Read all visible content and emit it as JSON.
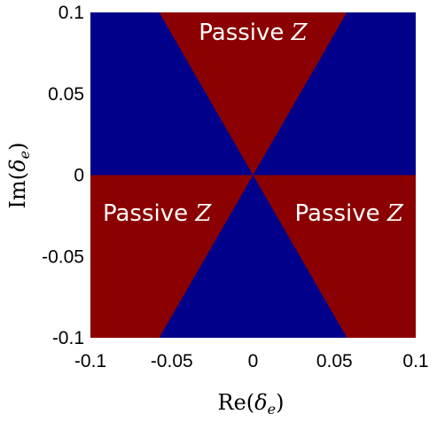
{
  "chart_data": {
    "type": "heatmap",
    "title": "",
    "x": {
      "label_prefix": "Re",
      "label_symbol": "δ",
      "label_subscript": "e",
      "range": [
        -0.1,
        0.1
      ],
      "ticks": [
        -0.1,
        -0.05,
        0,
        0.05,
        0.1
      ],
      "tick_labels": [
        "-0.1",
        "-0.05",
        "0",
        "0.05",
        "0.1"
      ]
    },
    "y": {
      "label_prefix": "Im",
      "label_symbol": "δ",
      "label_subscript": "e",
      "range": [
        -0.1,
        0.1
      ],
      "ticks": [
        0.1,
        0.05,
        0,
        -0.05,
        -0.1
      ],
      "tick_labels": [
        "0.1",
        "0.05",
        "0",
        "-0.05",
        "-0.1"
      ]
    },
    "grid": false,
    "background_color": "#00008b",
    "regions": [
      {
        "label_text": "Passive ",
        "label_symbol": "Z",
        "color": "#8b0000",
        "vertices": [
          [
            0,
            0
          ],
          [
            -0.0577,
            0.1
          ],
          [
            0.0577,
            0.1
          ]
        ],
        "label_at": [
          0.0,
          0.083
        ]
      },
      {
        "label_text": "Passive ",
        "label_symbol": "Z",
        "color": "#8b0000",
        "vertices": [
          [
            0,
            0
          ],
          [
            -0.1,
            0
          ],
          [
            -0.1,
            -0.1
          ],
          [
            -0.0577,
            -0.1
          ]
        ],
        "label_at": [
          -0.059,
          -0.028
        ]
      },
      {
        "label_text": "Passive ",
        "label_symbol": "Z",
        "color": "#8b0000",
        "vertices": [
          [
            0,
            0
          ],
          [
            0.0577,
            -0.1
          ],
          [
            0.1,
            -0.1
          ],
          [
            0.1,
            0
          ]
        ],
        "label_at": [
          0.059,
          -0.028
        ]
      }
    ]
  }
}
